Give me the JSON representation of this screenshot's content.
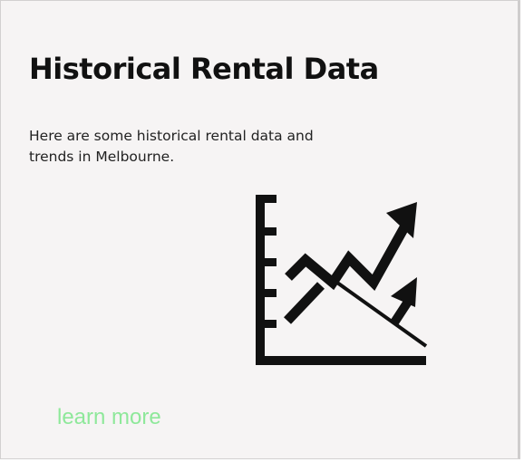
{
  "card": {
    "title": "Historical Rental Data",
    "description": "Here are some historical rental data and trends in Melbourne.",
    "icon": "trending-chart-icon",
    "link_label": "learn more"
  },
  "colors": {
    "card_background": "#f6f4f4",
    "title": "#111111",
    "link": "#8ee89a",
    "icon": "#111111"
  }
}
